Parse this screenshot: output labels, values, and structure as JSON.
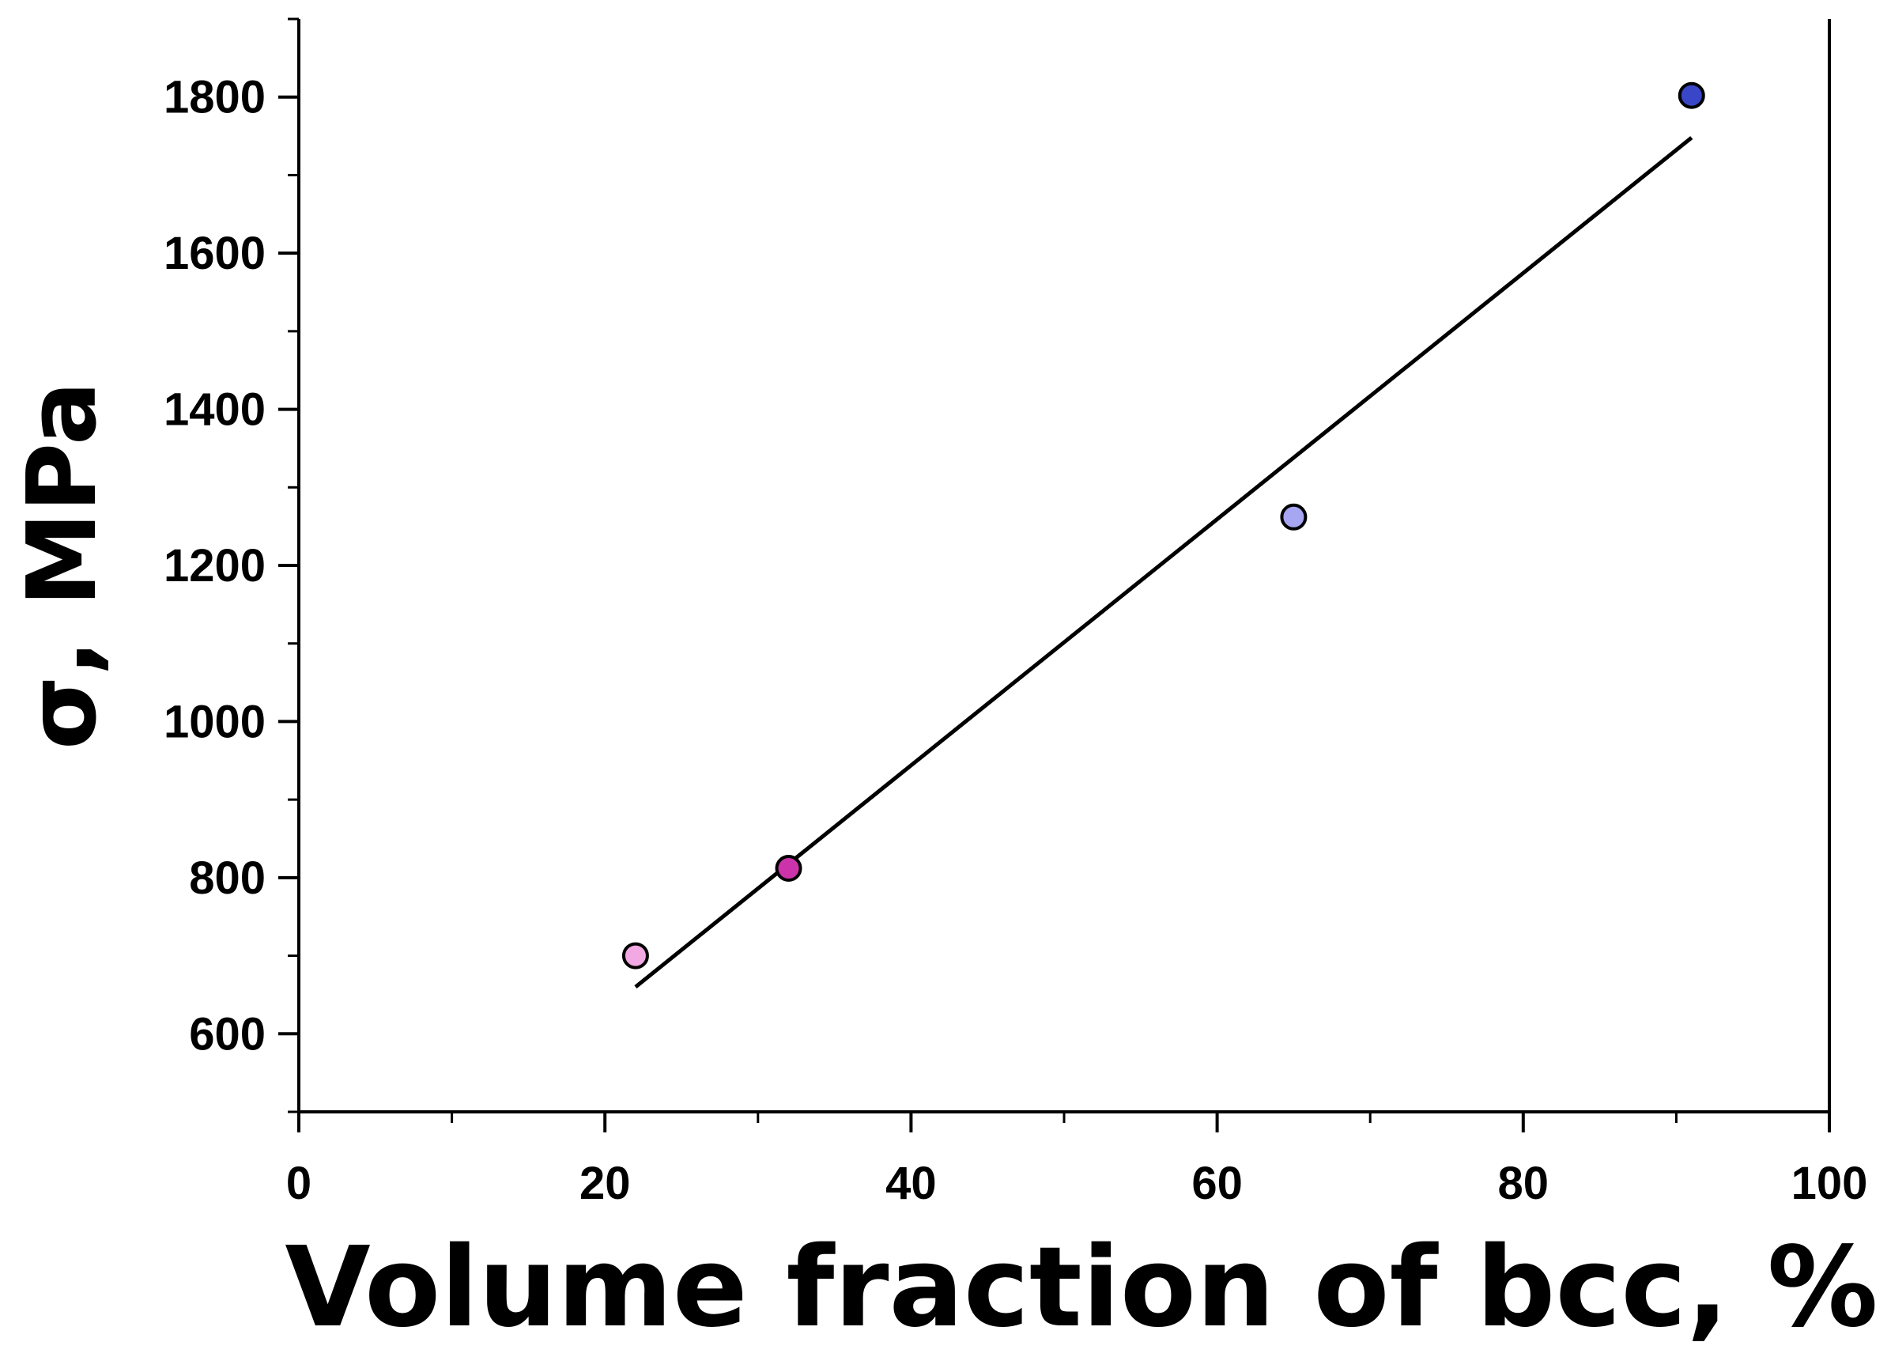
{
  "chart_data": {
    "type": "scatter",
    "title": "",
    "xlabel": "Volume fraction of bcc, %",
    "ylabel": "σ, MPa",
    "xlim": [
      0,
      100
    ],
    "ylim": [
      500,
      1900
    ],
    "x_ticks": [
      "0",
      "20",
      "40",
      "60",
      "80",
      "100"
    ],
    "x_tick_values": [
      0,
      20,
      40,
      60,
      80,
      100
    ],
    "y_ticks": [
      "600",
      "800",
      "1000",
      "1200",
      "1400",
      "1600",
      "1800"
    ],
    "y_tick_values": [
      600,
      800,
      1000,
      1200,
      1400,
      1600,
      1800
    ],
    "grid": false,
    "points": [
      {
        "x": 22,
        "y": 700,
        "color": "#f2a8e2"
      },
      {
        "x": 32,
        "y": 812,
        "color": "#cc33aa"
      },
      {
        "x": 65,
        "y": 1262,
        "color": "#a6a6f2"
      },
      {
        "x": 91,
        "y": 1802,
        "color": "#3a46c8"
      }
    ],
    "fit_line": {
      "x": [
        22,
        91
      ],
      "y": [
        660,
        1748
      ],
      "color": "#000000"
    }
  }
}
